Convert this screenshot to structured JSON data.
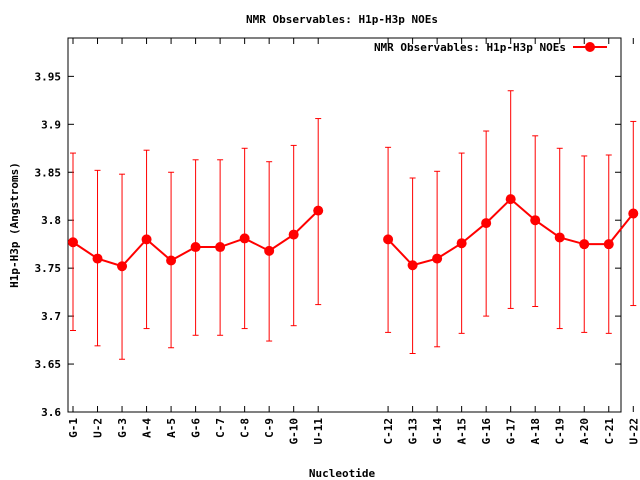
{
  "chart_data": {
    "type": "line",
    "title": "NMR Observables: H1p-H3p NOEs",
    "xlabel": "Nucleotide",
    "ylabel": "H1p-H3p (Angstroms)",
    "ylim": [
      3.6,
      3.99
    ],
    "yticks": [
      "3.6",
      "3.65",
      "3.7",
      "3.75",
      "3.8",
      "3.85",
      "3.9",
      "3.95"
    ],
    "grid": false,
    "legend_position": "top-right",
    "color": "#ff0000",
    "categories": [
      "G-1",
      "U-2",
      "G-3",
      "A-4",
      "A-5",
      "G-6",
      "C-7",
      "C-8",
      "C-9",
      "G-10",
      "U-11",
      "C-12",
      "G-13",
      "G-14",
      "A-15",
      "G-16",
      "G-17",
      "A-18",
      "C-19",
      "A-20",
      "C-21",
      "U-22"
    ],
    "series": [
      {
        "name": "NMR Observables: H1p-H3p NOEs",
        "values": [
          3.777,
          3.76,
          3.752,
          3.78,
          3.758,
          3.772,
          3.772,
          3.781,
          3.768,
          3.785,
          3.81,
          3.78,
          3.753,
          3.76,
          3.776,
          3.797,
          3.822,
          3.8,
          3.782,
          3.775,
          3.775,
          3.807
        ],
        "err_low": [
          3.685,
          3.669,
          3.655,
          3.687,
          3.667,
          3.68,
          3.68,
          3.687,
          3.674,
          3.69,
          3.712,
          3.683,
          3.661,
          3.668,
          3.682,
          3.7,
          3.708,
          3.71,
          3.687,
          3.683,
          3.682,
          3.711
        ],
        "err_high": [
          3.87,
          3.852,
          3.848,
          3.873,
          3.85,
          3.863,
          3.863,
          3.875,
          3.861,
          3.878,
          3.906,
          3.876,
          3.844,
          3.851,
          3.87,
          3.893,
          3.935,
          3.888,
          3.875,
          3.867,
          3.868,
          3.903
        ]
      }
    ]
  }
}
